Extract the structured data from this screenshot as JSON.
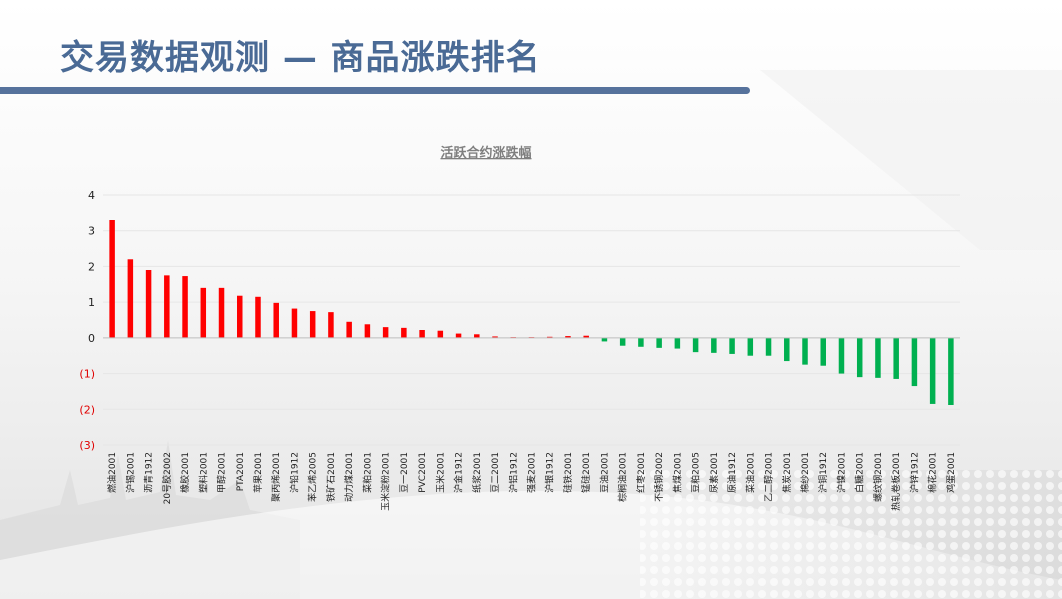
{
  "page": {
    "title": "交易数据观测 — 商品涨跌排名"
  },
  "chart_data": {
    "type": "bar",
    "title": "活跃合约涨跌幅",
    "xlabel": "",
    "ylabel": "",
    "ylim": [
      -3,
      4
    ],
    "yticks": [
      4,
      3,
      2,
      1,
      0,
      -1,
      -2,
      -3
    ],
    "ytick_labels": [
      "4",
      "3",
      "2",
      "1",
      "0",
      "(1)",
      "(2)",
      "(3)"
    ],
    "grid": true,
    "legend": "none",
    "colors": {
      "positive": "#ff0000",
      "negative": "#00b050",
      "negative_tick": "#e00000",
      "title": "#7f7f7f"
    },
    "categories": [
      "燃油2001",
      "沪锡2001",
      "沥青1912",
      "20号胶2002",
      "橡胶2001",
      "塑料2001",
      "甲醇2001",
      "PTA2001",
      "苹果2001",
      "聚丙烯2001",
      "沪铅1912",
      "苯乙烯2005",
      "铁矿石2001",
      "动力煤2001",
      "菜粕2001",
      "玉米淀粉2001",
      "豆一2001",
      "PVC2001",
      "玉米2001",
      "沪金1912",
      "纸浆2001",
      "豆二2001",
      "沪铝1912",
      "强麦2001",
      "沪银1912",
      "硅铁2001",
      "锰硅2001",
      "豆油2001",
      "棕榈油2001",
      "红枣2001",
      "不锈钢2002",
      "焦煤2001",
      "豆粕2005",
      "尿素2001",
      "原油1912",
      "菜油2001",
      "乙二醇2001",
      "焦炭2001",
      "棉纱2001",
      "沪铜1912",
      "沪镍2001",
      "白糖2001",
      "螺纹钢2001",
      "热轧卷板2001",
      "沪锌1912",
      "棉花2001",
      "鸡蛋2001"
    ],
    "values": [
      3.3,
      2.2,
      1.9,
      1.75,
      1.73,
      1.4,
      1.4,
      1.18,
      1.15,
      0.98,
      0.82,
      0.75,
      0.72,
      0.45,
      0.38,
      0.3,
      0.28,
      0.22,
      0.2,
      0.12,
      0.1,
      0.04,
      0.02,
      0.02,
      0.03,
      0.05,
      0.06,
      -0.1,
      -0.22,
      -0.25,
      -0.28,
      -0.3,
      -0.4,
      -0.42,
      -0.45,
      -0.5,
      -0.5,
      -0.65,
      -0.75,
      -0.78,
      -1.0,
      -1.1,
      -1.12,
      -1.15,
      -1.35,
      -1.85,
      -1.88
    ]
  }
}
